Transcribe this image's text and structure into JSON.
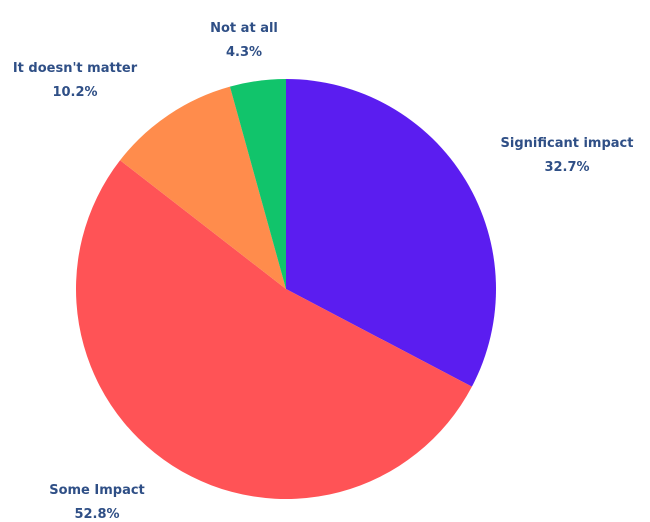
{
  "chart_data": {
    "type": "pie",
    "title": "",
    "start_angle_deg": 0,
    "direction": "clockwise",
    "label_color": "#2f4f86",
    "slices": [
      {
        "label": "Significant impact",
        "percent_text": "32.7%",
        "value": 32.7,
        "color": "#5b1df0"
      },
      {
        "label": "Some Impact",
        "percent_text": "52.8%",
        "value": 52.8,
        "color": "#ff5356"
      },
      {
        "label": "It doesn't matter",
        "percent_text": "10.2%",
        "value": 10.2,
        "color": "#ff8c4c"
      },
      {
        "label": "Not at all",
        "percent_text": "4.3%",
        "value": 4.3,
        "color": "#11c46b"
      }
    ]
  }
}
